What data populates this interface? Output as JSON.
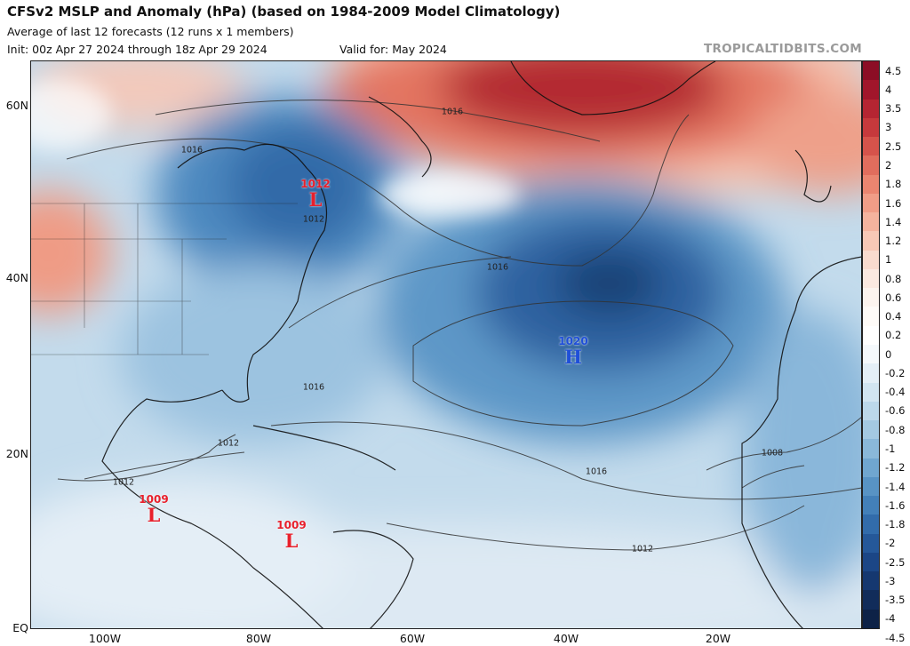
{
  "header": {
    "title": "CFSv2 MSLP and Anomaly (hPa) (based on 1984-2009 Model Climatology)",
    "subtitle": "Average of last 12 forecasts (12 runs x 1 members)",
    "init": "Init: 00z Apr 27 2024 through 18z Apr 29 2024",
    "valid": "Valid for: May 2024",
    "brand": "TROPICALTIDBITS.COM"
  },
  "axes": {
    "lat_labels": [
      "60N",
      "40N",
      "20N",
      "EQ"
    ],
    "lon_labels": [
      "100W",
      "80W",
      "60W",
      "40W",
      "20W"
    ]
  },
  "colorbar": {
    "ticks": [
      "4.5",
      "4",
      "3.5",
      "3",
      "2.5",
      "2",
      "1.8",
      "1.6",
      "1.4",
      "1.2",
      "1",
      "0.8",
      "0.6",
      "0.4",
      "0.2",
      "0",
      "-0.2",
      "-0.4",
      "-0.6",
      "-0.8",
      "-1",
      "-1.2",
      "-1.4",
      "-1.6",
      "-1.8",
      "-2",
      "-2.5",
      "-3",
      "-3.5",
      "-4",
      "-4.5"
    ],
    "colors": [
      "#8c0d25",
      "#a1162b",
      "#b52532",
      "#c6393c",
      "#d6534b",
      "#e16d5d",
      "#ea8570",
      "#f09d87",
      "#f4b39e",
      "#f7c8b6",
      "#f9dbce",
      "#fbe9e1",
      "#fcf4ef",
      "#fefbf8",
      "#ffffff",
      "#f5f9fc",
      "#e4eff7",
      "#d2e5f1",
      "#bcd8ea",
      "#a4c9e2",
      "#8ab8d9",
      "#70a6cf",
      "#5893c4",
      "#4380b9",
      "#326cab",
      "#255899",
      "#1b4686",
      "#153870",
      "#112c5a",
      "#0d2247"
    ]
  },
  "systems": [
    {
      "kind": "L",
      "value": "1012",
      "type": "low"
    },
    {
      "kind": "L",
      "value": "1009",
      "type": "low"
    },
    {
      "kind": "L",
      "value": "1009",
      "type": "low"
    },
    {
      "kind": "H",
      "value": "1020",
      "type": "high"
    }
  ],
  "contour_labels": [
    "1016",
    "1016",
    "1012",
    "1016",
    "1016",
    "1012",
    "1012",
    "1016",
    "1012",
    "1008"
  ]
}
